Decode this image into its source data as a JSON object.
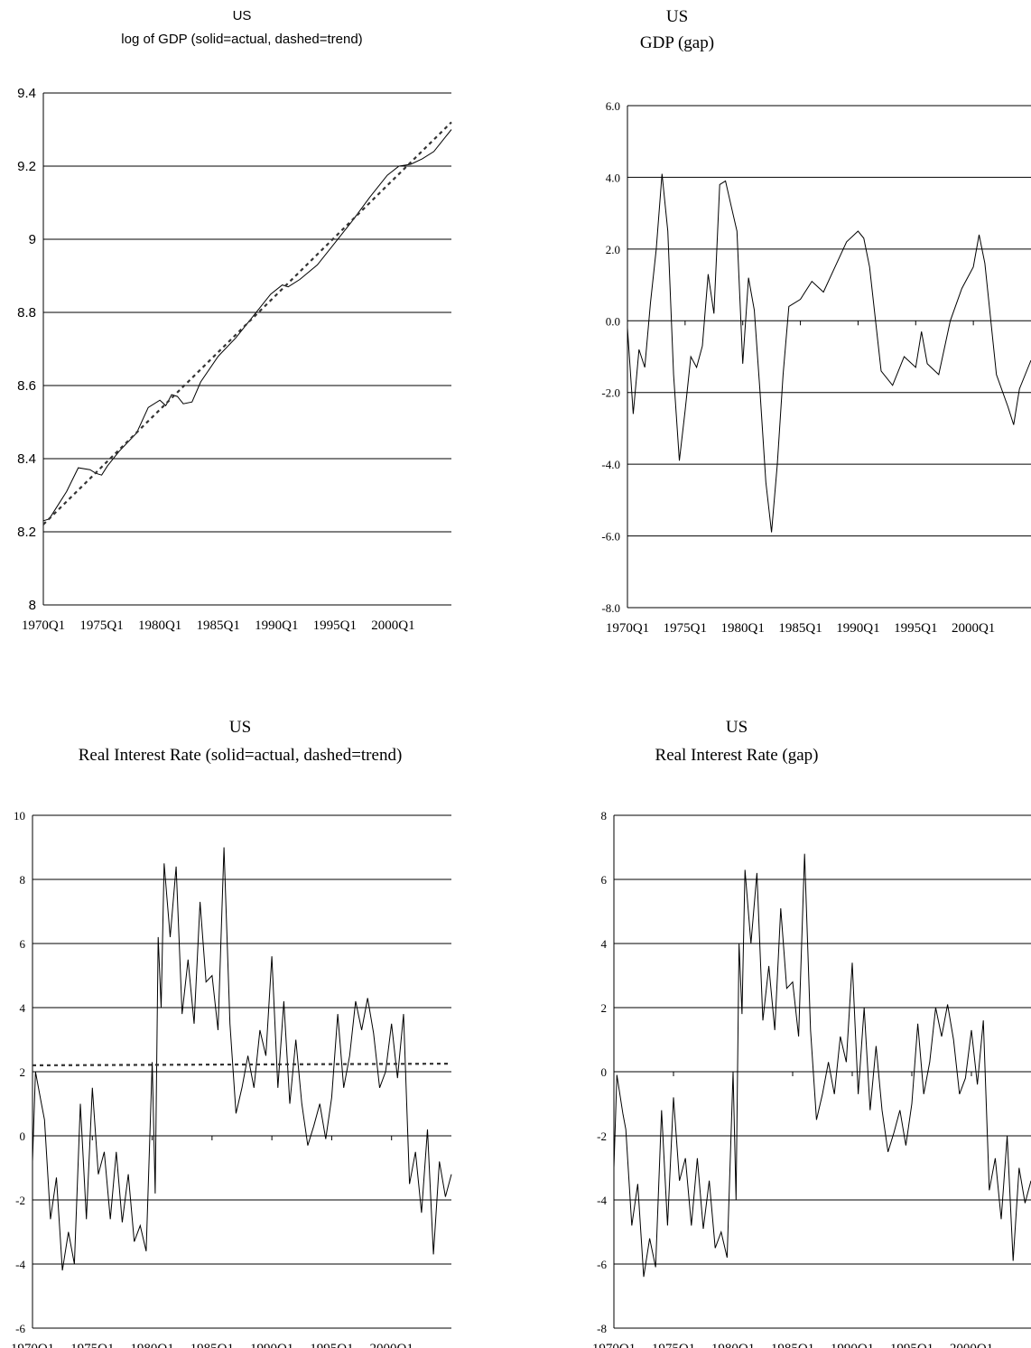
{
  "chart_data": [
    {
      "type": "line",
      "title": "US",
      "subtitle": "log of GDP (solid=actual, dashed=trend)",
      "title_font": "sans",
      "ylim": [
        8,
        9.4
      ],
      "yticks": [
        "8",
        "8.2",
        "8.4",
        "8.6",
        "8.8",
        "9",
        "9.2",
        "9.4"
      ],
      "xtick_labels": [
        "1970Q1",
        "1975Q1",
        "1980Q1",
        "1985Q1",
        "1990Q1",
        "1995Q1",
        "2000Q1"
      ],
      "xlim": [
        1970.0,
        2005.0
      ],
      "grid": true,
      "series": [
        {
          "style": "solid",
          "x": [
            1970.0,
            1970.5,
            1971.0,
            1972.0,
            1973.0,
            1974.0,
            1974.5,
            1975.0,
            1975.5,
            1976.5,
            1978.0,
            1979.0,
            1980.0,
            1980.5,
            1981.0,
            1981.5,
            1982.0,
            1982.75,
            1983.5,
            1985.0,
            1986.5,
            1988.0,
            1989.5,
            1990.5,
            1991.0,
            1992.0,
            1993.5,
            1995.0,
            1996.5,
            1998.0,
            1999.5,
            2000.5,
            2001.5,
            2002.5,
            2003.5,
            2004.5,
            2005.0
          ],
          "y": [
            8.23,
            8.235,
            8.26,
            8.31,
            8.375,
            8.37,
            8.36,
            8.355,
            8.38,
            8.42,
            8.47,
            8.54,
            8.56,
            8.545,
            8.575,
            8.57,
            8.55,
            8.555,
            8.61,
            8.68,
            8.73,
            8.79,
            8.85,
            8.875,
            8.87,
            8.89,
            8.93,
            8.99,
            9.05,
            9.115,
            9.175,
            9.2,
            9.205,
            9.22,
            9.24,
            9.28,
            9.3
          ]
        },
        {
          "style": "dashed",
          "x": [
            1970.0,
            2005.0
          ],
          "y": [
            8.22,
            9.32
          ]
        }
      ]
    },
    {
      "type": "line",
      "title": "US",
      "subtitle": "GDP (gap)",
      "title_font": "serif",
      "ylim": [
        -8,
        6
      ],
      "yticks": [
        "-8.0",
        "-6.0",
        "-4.0",
        "-2.0",
        "0.0",
        "2.0",
        "4.0",
        "6.0"
      ],
      "xtick_labels": [
        "1970Q1",
        "1975Q1",
        "1980Q1",
        "1985Q1",
        "1990Q1",
        "1995Q1",
        "2000Q1"
      ],
      "xlim": [
        1970.0,
        2005.0
      ],
      "grid": true,
      "series": [
        {
          "style": "solid",
          "x": [
            1970.0,
            1970.5,
            1971.0,
            1971.5,
            1972.0,
            1972.5,
            1973.0,
            1973.5,
            1974.0,
            1974.5,
            1975.0,
            1975.5,
            1976.0,
            1976.5,
            1977.0,
            1977.5,
            1978.0,
            1978.5,
            1979.0,
            1979.5,
            1980.0,
            1980.5,
            1981.0,
            1981.5,
            1982.0,
            1982.5,
            1983.0,
            1983.5,
            1984.0,
            1985.0,
            1986.0,
            1987.0,
            1988.0,
            1989.0,
            1990.0,
            1990.5,
            1991.0,
            1992.0,
            1993.0,
            1994.0,
            1995.0,
            1995.5,
            1996.0,
            1997.0,
            1998.0,
            1999.0,
            2000.0,
            2000.5,
            2001.0,
            2002.0,
            2003.0,
            2003.5,
            2004.0,
            2005.0
          ],
          "y": [
            -0.2,
            -2.6,
            -0.8,
            -1.3,
            0.5,
            2.0,
            4.1,
            2.5,
            -1.5,
            -3.9,
            -2.5,
            -1.0,
            -1.3,
            -0.7,
            1.3,
            0.2,
            3.8,
            3.9,
            3.2,
            2.5,
            -1.2,
            1.2,
            0.3,
            -2.0,
            -4.5,
            -5.9,
            -4.0,
            -1.5,
            0.4,
            0.6,
            1.1,
            0.8,
            1.5,
            2.2,
            2.5,
            2.3,
            1.5,
            -1.4,
            -1.8,
            -1.0,
            -1.3,
            -0.3,
            -1.2,
            -1.5,
            0.0,
            0.9,
            1.5,
            2.4,
            1.6,
            -1.5,
            -2.4,
            -2.9,
            -1.9,
            -1.1
          ]
        }
      ]
    },
    {
      "type": "line",
      "title": "US",
      "subtitle": "Real Interest Rate (solid=actual, dashed=trend)",
      "title_font": "serif",
      "ylim": [
        -6,
        10
      ],
      "yticks": [
        "-6",
        "-4",
        "-2",
        "0",
        "2",
        "4",
        "6",
        "8",
        "10"
      ],
      "xtick_labels": [
        "1970Q1",
        "1975Q1",
        "1980Q1",
        "1985Q1",
        "1990Q1",
        "1995Q1",
        "2000Q1"
      ],
      "xlim": [
        1970.0,
        2005.0
      ],
      "grid": true,
      "series": [
        {
          "style": "solid",
          "x": [
            1970.0,
            1970.25,
            1970.75,
            1971.0,
            1971.5,
            1972.0,
            1972.5,
            1973.0,
            1973.5,
            1974.0,
            1974.5,
            1975.0,
            1975.5,
            1976.0,
            1976.5,
            1977.0,
            1977.5,
            1978.0,
            1978.5,
            1979.0,
            1979.5,
            1980.0,
            1980.25,
            1980.5,
            1980.75,
            1981.0,
            1981.5,
            1982.0,
            1982.5,
            1983.0,
            1983.5,
            1984.0,
            1984.5,
            1985.0,
            1985.5,
            1986.0,
            1986.5,
            1987.0,
            1987.5,
            1988.0,
            1988.5,
            1989.0,
            1989.5,
            1990.0,
            1990.5,
            1991.0,
            1991.5,
            1992.0,
            1992.5,
            1993.0,
            1993.5,
            1994.0,
            1994.5,
            1995.0,
            1995.5,
            1996.0,
            1996.5,
            1997.0,
            1997.5,
            1998.0,
            1998.5,
            1999.0,
            1999.5,
            2000.0,
            2000.5,
            2001.0,
            2001.5,
            2002.0,
            2002.5,
            2003.0,
            2003.5,
            2004.0,
            2004.5,
            2005.0
          ],
          "y": [
            -0.8,
            2.0,
            1.0,
            0.5,
            -2.6,
            -1.3,
            -4.2,
            -3.0,
            -4.0,
            1.0,
            -2.6,
            1.5,
            -1.2,
            -0.5,
            -2.6,
            -0.5,
            -2.7,
            -1.2,
            -3.3,
            -2.8,
            -3.6,
            2.3,
            -1.8,
            6.2,
            4.0,
            8.5,
            6.2,
            8.4,
            3.8,
            5.5,
            3.5,
            7.3,
            4.8,
            5.0,
            3.3,
            9.0,
            3.5,
            0.7,
            1.5,
            2.5,
            1.5,
            3.3,
            2.5,
            5.6,
            1.5,
            4.2,
            1.0,
            3.0,
            1.0,
            -0.3,
            0.3,
            1.0,
            -0.1,
            1.2,
            3.8,
            1.5,
            2.5,
            4.2,
            3.3,
            4.3,
            3.2,
            1.5,
            2.0,
            3.5,
            1.8,
            3.8,
            -1.5,
            -0.5,
            -2.4,
            0.2,
            -3.7,
            -0.8,
            -1.9,
            -1.2
          ]
        },
        {
          "style": "dashed",
          "x": [
            1970.0,
            2005.0
          ],
          "y": [
            2.2,
            2.25
          ]
        }
      ]
    },
    {
      "type": "line",
      "title": "US",
      "subtitle": "Real Interest Rate (gap)",
      "title_font": "serif",
      "ylim": [
        -8,
        8
      ],
      "yticks": [
        "-8",
        "-6",
        "-4",
        "-2",
        "0",
        "2",
        "4",
        "6",
        "8"
      ],
      "xtick_labels": [
        "1970Q1",
        "1975Q1",
        "1980Q1",
        "1985Q1",
        "1990Q1",
        "1995Q1",
        "2000Q1"
      ],
      "xlim": [
        1970.0,
        2005.0
      ],
      "grid": true,
      "series": [
        {
          "style": "solid",
          "x": [
            1970.0,
            1970.25,
            1970.75,
            1971.0,
            1971.5,
            1972.0,
            1972.5,
            1973.0,
            1973.5,
            1974.0,
            1974.5,
            1975.0,
            1975.5,
            1976.0,
            1976.5,
            1977.0,
            1977.5,
            1978.0,
            1978.5,
            1979.0,
            1979.5,
            1980.0,
            1980.25,
            1980.5,
            1980.75,
            1981.0,
            1981.5,
            1982.0,
            1982.5,
            1983.0,
            1983.5,
            1984.0,
            1984.5,
            1985.0,
            1985.5,
            1986.0,
            1986.5,
            1987.0,
            1987.5,
            1988.0,
            1988.5,
            1989.0,
            1989.5,
            1990.0,
            1990.5,
            1991.0,
            1991.5,
            1992.0,
            1992.5,
            1993.0,
            1993.5,
            1994.0,
            1994.5,
            1995.0,
            1995.5,
            1996.0,
            1996.5,
            1997.0,
            1997.5,
            1998.0,
            1998.5,
            1999.0,
            1999.5,
            2000.0,
            2000.5,
            2001.0,
            2001.5,
            2002.0,
            2002.5,
            2003.0,
            2003.5,
            2004.0,
            2004.5,
            2005.0
          ],
          "y": [
            -3.0,
            -0.1,
            -1.3,
            -1.8,
            -4.8,
            -3.5,
            -6.4,
            -5.2,
            -6.1,
            -1.2,
            -4.8,
            -0.8,
            -3.4,
            -2.7,
            -4.8,
            -2.7,
            -4.9,
            -3.4,
            -5.5,
            -5.0,
            -5.8,
            0.0,
            -4.0,
            4.0,
            1.8,
            6.3,
            4.0,
            6.2,
            1.6,
            3.3,
            1.3,
            5.1,
            2.6,
            2.8,
            1.1,
            6.8,
            1.3,
            -1.5,
            -0.7,
            0.3,
            -0.7,
            1.1,
            0.3,
            3.4,
            -0.7,
            2.0,
            -1.2,
            0.8,
            -1.2,
            -2.5,
            -1.9,
            -1.2,
            -2.3,
            -1.0,
            1.5,
            -0.7,
            0.3,
            2.0,
            1.1,
            2.1,
            1.0,
            -0.7,
            -0.2,
            1.3,
            -0.4,
            1.6,
            -3.7,
            -2.7,
            -4.6,
            -2.0,
            -5.9,
            -3.0,
            -4.1,
            -3.4
          ]
        }
      ]
    }
  ]
}
